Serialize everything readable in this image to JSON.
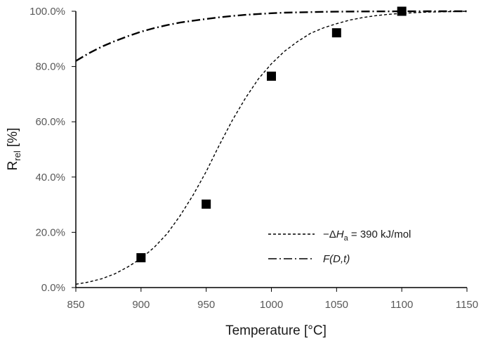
{
  "chart_data": {
    "type": "scatter",
    "xlabel": "Temperature [°C]",
    "ylabel": {
      "main": "R",
      "sub": "rel",
      "unit": " [%]"
    },
    "xlim": [
      850,
      1150
    ],
    "ylim": [
      0,
      100
    ],
    "x_ticks": [
      850,
      900,
      950,
      1000,
      1050,
      1100,
      1150
    ],
    "x_tick_labels": [
      "850",
      "900",
      "950",
      "1000",
      "1050",
      "1100",
      "1150"
    ],
    "y_ticks": [
      0,
      20,
      40,
      60,
      80,
      100
    ],
    "y_tick_labels": [
      "0.0%",
      "20.0%",
      "40.0%",
      "60.0%",
      "80.0%",
      "100.0%"
    ],
    "grid": false,
    "legend_position": "bottom-right",
    "series": [
      {
        "kind": "markers",
        "marker": "square",
        "color": "#000000",
        "x": [
          900,
          950,
          1000,
          1050,
          1100
        ],
        "y": [
          10.8,
          30.2,
          76.5,
          92.2,
          100.0
        ]
      },
      {
        "kind": "line",
        "style": "dashed",
        "color": "#000000",
        "legend": {
          "prefix": "−Δ",
          "var": "H",
          "sub": "a",
          "suffix": " = 390 kJ/mol"
        },
        "x": [
          850,
          860,
          870,
          880,
          890,
          900,
          910,
          920,
          930,
          940,
          950,
          960,
          970,
          980,
          990,
          1000,
          1010,
          1020,
          1030,
          1040,
          1050,
          1060,
          1070,
          1080,
          1090,
          1100,
          1110,
          1120,
          1130,
          1140,
          1150
        ],
        "y": [
          1.2,
          2.0,
          3.2,
          5.0,
          7.5,
          10.5,
          14.5,
          19.5,
          26.0,
          33.5,
          42.0,
          51.5,
          60.5,
          68.5,
          75.5,
          81.0,
          85.5,
          89.0,
          92.0,
          94.0,
          95.5,
          96.8,
          97.7,
          98.4,
          98.9,
          99.2,
          99.5,
          99.7,
          99.8,
          99.9,
          100.0
        ]
      },
      {
        "kind": "line",
        "style": "dash-dot",
        "color": "#000000",
        "legend": {
          "text": "F(D,t)"
        },
        "x": [
          850,
          860,
          870,
          880,
          890,
          900,
          910,
          920,
          930,
          940,
          950,
          960,
          970,
          980,
          990,
          1000,
          1010,
          1020,
          1030,
          1040,
          1050,
          1060,
          1070,
          1080,
          1090,
          1100,
          1110,
          1120,
          1130,
          1140,
          1150
        ],
        "y": [
          82.0,
          84.8,
          87.2,
          89.2,
          91.0,
          92.6,
          93.9,
          95.0,
          95.9,
          96.6,
          97.2,
          97.8,
          98.3,
          98.7,
          99.0,
          99.3,
          99.5,
          99.6,
          99.7,
          99.8,
          99.85,
          99.9,
          99.92,
          99.94,
          99.96,
          99.97,
          99.98,
          99.99,
          99.99,
          100.0,
          100.0
        ]
      }
    ]
  }
}
